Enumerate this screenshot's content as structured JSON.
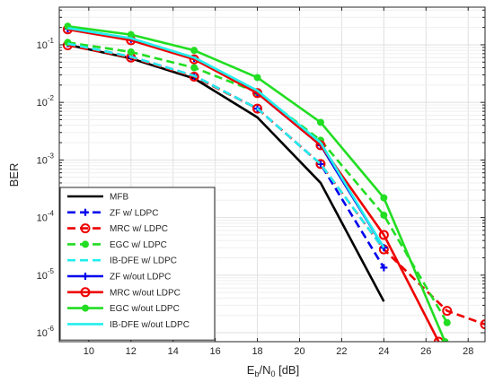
{
  "chart_data": {
    "type": "line",
    "title": "",
    "ylabel": "BER",
    "xlabel_parts": {
      "main": "E",
      "sub1": "b",
      "mid": "/N",
      "sub2": "0",
      "tail": " [dB]"
    },
    "xlim": [
      8.6,
      28.8
    ],
    "ylim": [
      7e-07,
      0.45
    ],
    "yscale": "log",
    "grid": true,
    "x_ticks": [
      10,
      12,
      14,
      16,
      18,
      20,
      22,
      24,
      26,
      28
    ],
    "x_tick_labels": [
      "10",
      "12",
      "14",
      "16",
      "18",
      "20",
      "22",
      "24",
      "26",
      "28"
    ],
    "y_ticks": [
      1e-06,
      1e-05,
      0.0001,
      0.001,
      0.01,
      0.1
    ],
    "y_tick_labels": [
      {
        "base": "10",
        "exp": "-6"
      },
      {
        "base": "10",
        "exp": "-5"
      },
      {
        "base": "10",
        "exp": "-4"
      },
      {
        "base": "10",
        "exp": "-3"
      },
      {
        "base": "10",
        "exp": "-2"
      },
      {
        "base": "10",
        "exp": "-1"
      }
    ],
    "legend_position": "bottom-left",
    "series": [
      {
        "name": "MFB",
        "color": "#000000",
        "dash": "solid",
        "marker": "none",
        "x": [
          9,
          12,
          15,
          18,
          21,
          24
        ],
        "y": [
          0.1,
          0.058,
          0.026,
          0.0055,
          0.0004,
          3.5e-06
        ]
      },
      {
        "name": "ZF w/ LDPC",
        "color": "#0000ee",
        "dash": "dashed",
        "marker": "plus",
        "x": [
          9,
          12,
          15,
          18,
          21,
          24
        ],
        "y": [
          0.105,
          0.062,
          0.029,
          0.0078,
          0.00085,
          1.35e-05
        ]
      },
      {
        "name": "MRC w/ LDPC",
        "color": "#ee0000",
        "dash": "dashed",
        "marker": "circle",
        "x": [
          9,
          12,
          15,
          18,
          21,
          24,
          27,
          28.8
        ],
        "y": [
          0.098,
          0.06,
          0.028,
          0.0078,
          0.00085,
          2.8e-05,
          2.4e-06,
          1.4e-06
        ]
      },
      {
        "name": "EGC w/ LDPC",
        "color": "#22dd22",
        "dash": "dashed",
        "marker": "dot",
        "x": [
          9,
          12,
          15,
          18,
          21,
          24,
          27
        ],
        "y": [
          0.11,
          0.075,
          0.04,
          0.015,
          0.0022,
          0.00011,
          1.5e-06
        ]
      },
      {
        "name": "IB-DFE w/ LDPC",
        "color": "#22eeee",
        "dash": "dashed",
        "marker": "none",
        "x": [
          9,
          12,
          15,
          18,
          21,
          24
        ],
        "y": [
          0.105,
          0.062,
          0.029,
          0.0078,
          0.00085,
          2.8e-05
        ]
      },
      {
        "name": "ZF w/out LDPC",
        "color": "#0000ee",
        "dash": "solid",
        "marker": "plus",
        "x": [
          9,
          12,
          15,
          18,
          21,
          24
        ],
        "y": [
          0.19,
          0.125,
          0.058,
          0.0145,
          0.0018,
          3e-05
        ]
      },
      {
        "name": "MRC w/out LDPC",
        "color": "#ee0000",
        "dash": "solid",
        "marker": "circle",
        "x": [
          9,
          12,
          15,
          18,
          21,
          24,
          26.6
        ],
        "y": [
          0.185,
          0.12,
          0.056,
          0.0145,
          0.0018,
          5e-05,
          7e-07
        ]
      },
      {
        "name": "EGC w/out LDPC",
        "color": "#22dd22",
        "dash": "solid",
        "marker": "dot",
        "x": [
          9,
          12,
          15,
          18,
          21,
          24,
          26.9
        ],
        "y": [
          0.21,
          0.15,
          0.08,
          0.027,
          0.0045,
          0.00022,
          7e-07
        ]
      },
      {
        "name": "IB-DFE w/out LDPC",
        "color": "#22eeee",
        "dash": "solid",
        "marker": "none",
        "x": [
          9,
          12,
          15,
          18,
          21,
          24
        ],
        "y": [
          0.195,
          0.13,
          0.06,
          0.016,
          0.002,
          3e-05
        ]
      }
    ]
  }
}
